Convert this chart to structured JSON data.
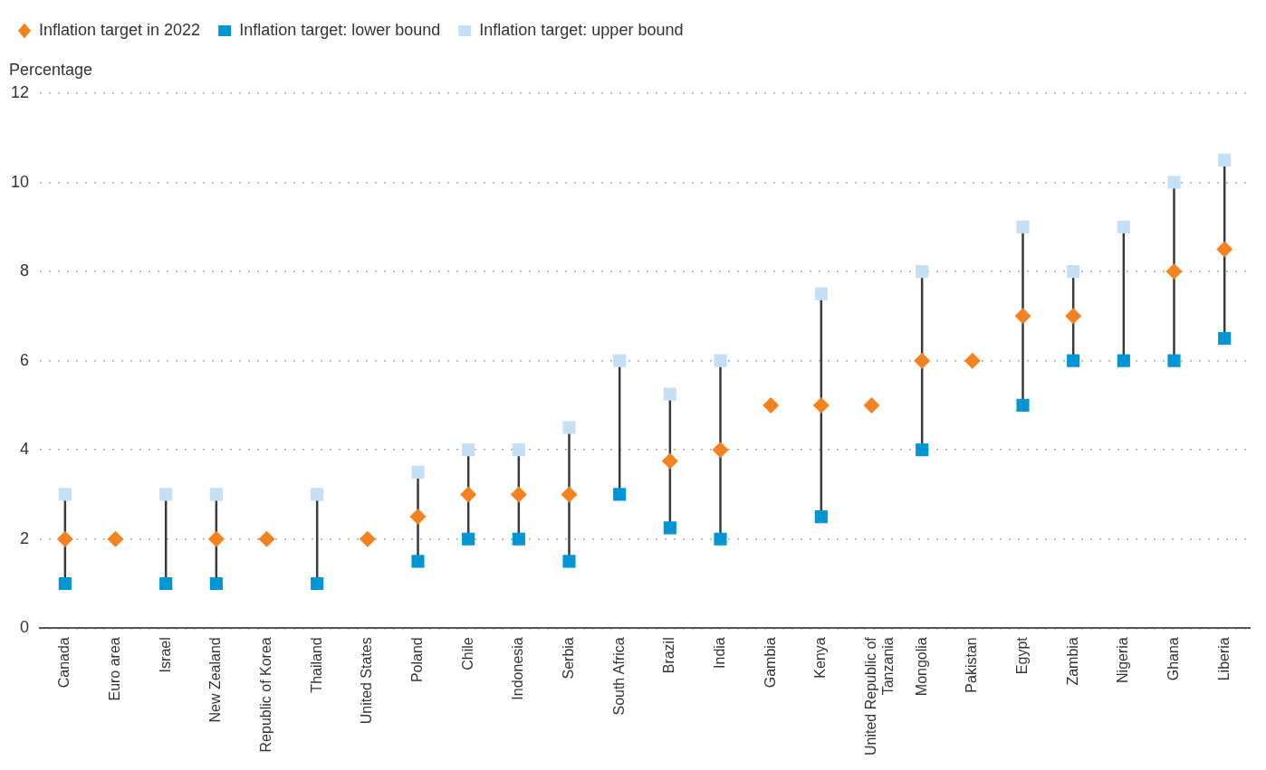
{
  "chart_data": {
    "type": "scatter",
    "ylabel": "Percentage",
    "categories": [
      "Canada",
      "Euro area",
      "Israel",
      "New Zealand",
      "Republic of Korea",
      "Thailand",
      "United States",
      "Poland",
      "Chile",
      "Indonesia",
      "Serbia",
      "South Africa",
      "Brazil",
      "India",
      "Gambia",
      "Kenya",
      "United Republic of Tanzania",
      "Mongolia",
      "Pakistan",
      "Egypt",
      "Zambia",
      "Nigeria",
      "Ghana",
      "Liberia"
    ],
    "series": [
      {
        "name": "Inflation target in 2022",
        "color": "#f58220",
        "marker": "diamond",
        "values": [
          2,
          2,
          null,
          2,
          2,
          null,
          2,
          2.5,
          3,
          3,
          3,
          null,
          3.75,
          4,
          5,
          5,
          5,
          6,
          6,
          7,
          7,
          null,
          8,
          8.5
        ]
      },
      {
        "name": "Inflation target: lower bound",
        "color": "#0096d6",
        "marker": "square",
        "values": [
          1,
          null,
          1,
          1,
          null,
          1,
          null,
          1.5,
          2,
          2,
          1.5,
          3,
          2.25,
          2,
          null,
          2.5,
          null,
          4,
          null,
          5,
          6,
          6,
          6,
          6.5
        ]
      },
      {
        "name": "Inflation target: upper bound",
        "color": "#c5e0f4",
        "marker": "square",
        "values": [
          3,
          null,
          3,
          3,
          null,
          3,
          null,
          3.5,
          4,
          4,
          4.5,
          6,
          5.25,
          6,
          null,
          7.5,
          null,
          8,
          null,
          9,
          8,
          9,
          10,
          10.5
        ]
      }
    ],
    "ylim": [
      0,
      12
    ],
    "yticks": [
      0,
      2,
      4,
      6,
      8,
      10,
      12
    ],
    "grid": "y",
    "legend": "top left"
  }
}
